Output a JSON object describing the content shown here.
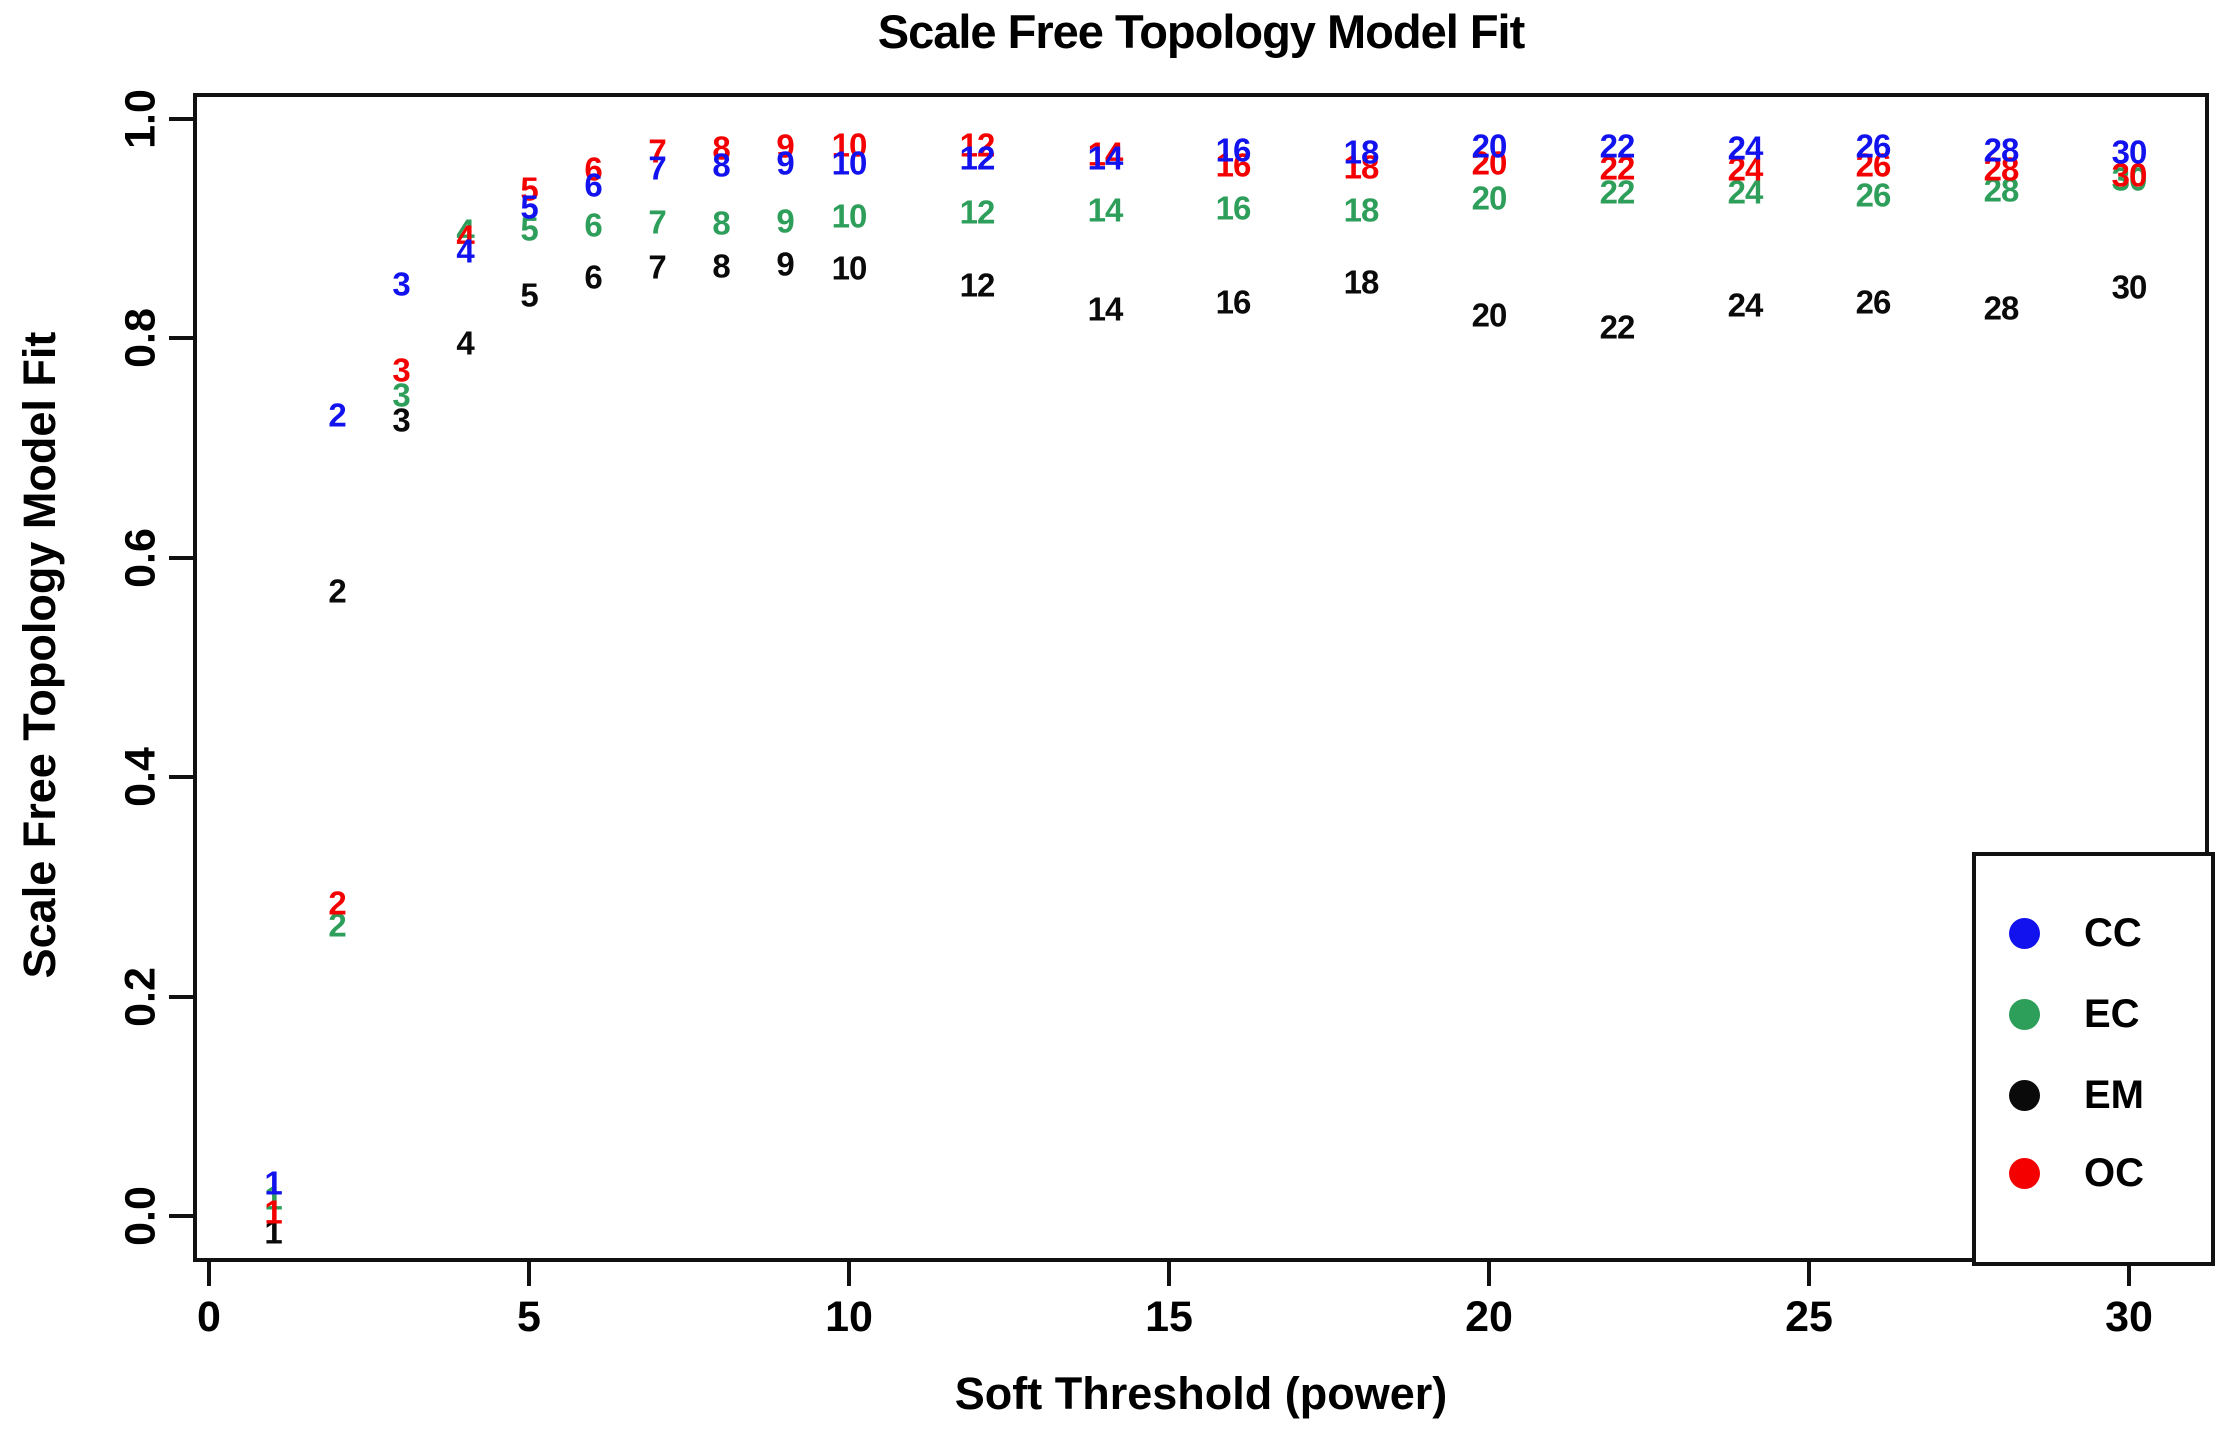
{
  "figure": {
    "title": "Scale Free Topology Model Fit",
    "xlabel": "Soft Threshold (power)",
    "ylabel": "Scale Free Topology Model Fit"
  },
  "chart_data": {
    "type": "scatter",
    "title": "Scale Free Topology Model Fit",
    "xlabel": "Soft Threshold (power)",
    "ylabel": "Scale Free Topology Model Fit",
    "point_style": "each point drawn as its power number in the series color",
    "grid": false,
    "xlim": [
      -0.25,
      31.25
    ],
    "ylim": [
      -0.042,
      1.024
    ],
    "x_ticks": [
      "0",
      "5",
      "10",
      "15",
      "20",
      "25",
      "30"
    ],
    "y_ticks": [
      "0.0",
      "0.2",
      "0.4",
      "0.6",
      "0.8",
      "1.0"
    ],
    "x": [
      1,
      2,
      3,
      4,
      5,
      6,
      7,
      8,
      9,
      10,
      12,
      14,
      16,
      18,
      20,
      22,
      24,
      26,
      28,
      30
    ],
    "series": [
      {
        "name": "EM",
        "color": "#0a0a0a",
        "values": [
          -0.015,
          0.57,
          0.726,
          0.796,
          0.84,
          0.856,
          0.865,
          0.866,
          0.868,
          0.864,
          0.849,
          0.827,
          0.833,
          0.851,
          0.821,
          0.81,
          0.83,
          0.833,
          0.828,
          0.847
        ]
      },
      {
        "name": "EC",
        "color": "#2e9e5b",
        "values": [
          0.016,
          0.265,
          0.748,
          0.898,
          0.9,
          0.903,
          0.906,
          0.905,
          0.907,
          0.912,
          0.915,
          0.917,
          0.919,
          0.917,
          0.928,
          0.933,
          0.933,
          0.931,
          0.935,
          0.945
        ]
      },
      {
        "name": "OC",
        "color": "#f40000",
        "values": [
          0.004,
          0.285,
          0.771,
          0.892,
          0.936,
          0.954,
          0.971,
          0.974,
          0.975,
          0.976,
          0.976,
          0.968,
          0.958,
          0.956,
          0.96,
          0.955,
          0.954,
          0.958,
          0.954,
          0.949
        ]
      },
      {
        "name": "CC",
        "color": "#1212ee",
        "values": [
          0.03,
          0.73,
          0.85,
          0.88,
          0.92,
          0.94,
          0.955,
          0.958,
          0.96,
          0.96,
          0.964,
          0.964,
          0.972,
          0.97,
          0.975,
          0.975,
          0.974,
          0.975,
          0.972,
          0.97
        ]
      }
    ],
    "legend": {
      "position": "bottom-right",
      "entries": [
        {
          "label": "CC",
          "color": "#1212ee"
        },
        {
          "label": "EC",
          "color": "#2e9e5b"
        },
        {
          "label": "EM",
          "color": "#0a0a0a"
        },
        {
          "label": "OC",
          "color": "#f40000"
        }
      ]
    }
  }
}
